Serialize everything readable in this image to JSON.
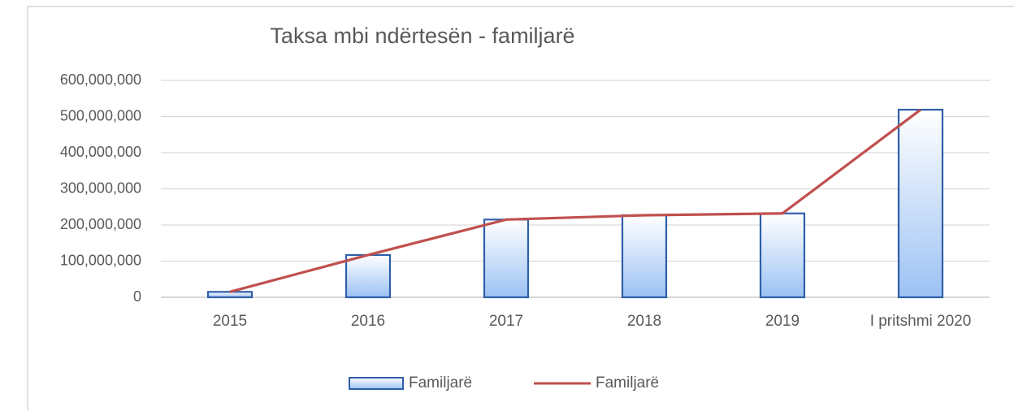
{
  "chart_data": {
    "type": "combo",
    "title": "Taksa mbi ndërtesën  - familjarë",
    "categories": [
      "2015",
      "2016",
      "2017",
      "2018",
      "2019",
      "I pritshmi 2020"
    ],
    "series": [
      {
        "name": "Familjarë",
        "type": "bar",
        "color": "#2f5fa8",
        "values": [
          15000000,
          117000000,
          215000000,
          227000000,
          232000000,
          519000000
        ]
      },
      {
        "name": "Familjarë",
        "type": "line",
        "color": "#c0504d",
        "values": [
          15000000,
          117000000,
          215000000,
          227000000,
          232000000,
          519000000
        ]
      }
    ],
    "ylim": [
      0,
      600000000
    ],
    "yticks": [
      0,
      {
        "value": 100000000,
        "label": "100,000,000"
      },
      {
        "value": 200000000,
        "label": "200,000,000"
      },
      {
        "value": 300000000,
        "label": "300,000,000"
      },
      {
        "value": 400000000,
        "label": "400,000,000"
      },
      {
        "value": 500000000,
        "label": "500,000,000"
      },
      {
        "value": 600000000,
        "label": "600,000,000"
      }
    ],
    "grid": true,
    "legend": "bottom"
  }
}
